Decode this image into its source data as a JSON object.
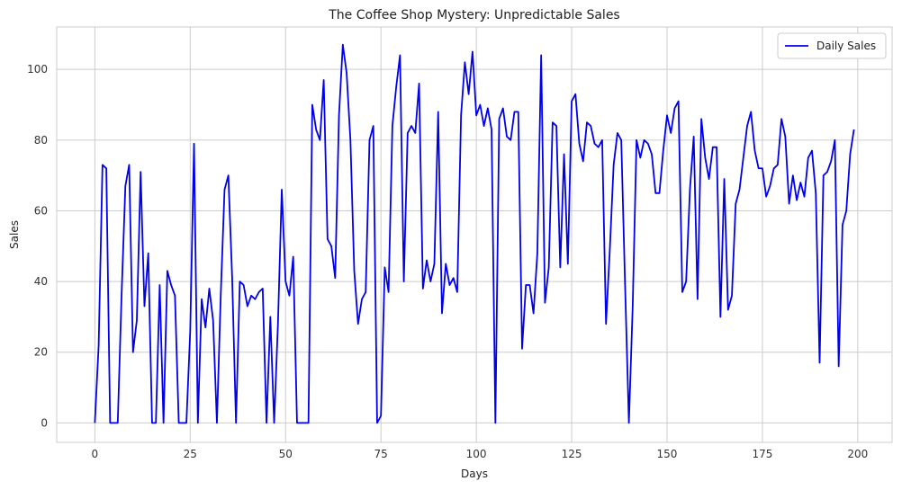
{
  "chart_data": {
    "type": "line",
    "title": "The Coffee Shop Mystery: Unpredictable Sales",
    "xlabel": "Days",
    "ylabel": "Sales",
    "xlim": [
      -10,
      209
    ],
    "ylim": [
      -5.5,
      112
    ],
    "xticks": [
      0,
      25,
      50,
      75,
      100,
      125,
      150,
      175,
      200
    ],
    "yticks": [
      0,
      20,
      40,
      60,
      80,
      100
    ],
    "grid": true,
    "legend_position": "top-right",
    "series": [
      {
        "name": "Daily Sales",
        "color": "#0000ee",
        "x": [
          0,
          1,
          2,
          3,
          4,
          5,
          6,
          7,
          8,
          9,
          10,
          11,
          12,
          13,
          14,
          15,
          16,
          17,
          18,
          19,
          20,
          21,
          22,
          23,
          24,
          25,
          26,
          27,
          28,
          29,
          30,
          31,
          32,
          33,
          34,
          35,
          36,
          37,
          38,
          39,
          40,
          41,
          42,
          43,
          44,
          45,
          46,
          47,
          48,
          49,
          50,
          51,
          52,
          53,
          54,
          55,
          56,
          57,
          58,
          59,
          60,
          61,
          62,
          63,
          64,
          65,
          66,
          67,
          68,
          69,
          70,
          71,
          72,
          73,
          74,
          75,
          76,
          77,
          78,
          79,
          80,
          81,
          82,
          83,
          84,
          85,
          86,
          87,
          88,
          89,
          90,
          91,
          92,
          93,
          94,
          95,
          96,
          97,
          98,
          99,
          100,
          101,
          102,
          103,
          104,
          105,
          106,
          107,
          108,
          109,
          110,
          111,
          112,
          113,
          114,
          115,
          116,
          117,
          118,
          119,
          120,
          121,
          122,
          123,
          124,
          125,
          126,
          127,
          128,
          129,
          130,
          131,
          132,
          133,
          134,
          135,
          136,
          137,
          138,
          139,
          140,
          141,
          142,
          143,
          144,
          145,
          146,
          147,
          148,
          149,
          150,
          151,
          152,
          153,
          154,
          155,
          156,
          157,
          158,
          159,
          160,
          161,
          162,
          163,
          164,
          165,
          166,
          167,
          168,
          169,
          170,
          171,
          172,
          173,
          174,
          175,
          176,
          177,
          178,
          179,
          180,
          181,
          182,
          183,
          184,
          185,
          186,
          187,
          188,
          189,
          190,
          191,
          192,
          193,
          194,
          195,
          196,
          197,
          198,
          199
        ],
        "values": [
          0,
          22,
          73,
          72,
          0,
          0,
          0,
          36,
          67,
          73,
          20,
          29,
          71,
          33,
          48,
          0,
          0,
          39,
          0,
          43,
          39,
          36,
          0,
          0,
          0,
          26,
          79,
          0,
          35,
          27,
          38,
          29,
          0,
          36,
          66,
          70,
          41,
          0,
          40,
          39,
          33,
          36,
          35,
          37,
          38,
          0,
          30,
          0,
          28,
          66,
          40,
          36,
          47,
          0,
          0,
          0,
          0,
          90,
          83,
          80,
          97,
          52,
          50,
          41,
          87,
          107,
          99,
          80,
          43,
          28,
          35,
          37,
          80,
          84,
          0,
          2,
          44,
          37,
          84,
          95,
          104,
          40,
          82,
          84,
          82,
          96,
          38,
          46,
          40,
          45,
          88,
          31,
          45,
          39,
          41,
          37,
          87,
          102,
          93,
          105,
          87,
          90,
          84,
          89,
          83,
          0,
          86,
          89,
          81,
          80,
          88,
          88,
          21,
          39,
          39,
          31,
          48,
          104,
          34,
          44,
          85,
          84,
          44,
          76,
          45,
          91,
          93,
          79,
          74,
          85,
          84,
          79,
          78,
          80,
          28,
          49,
          73,
          82,
          80,
          39,
          0,
          33,
          80,
          75,
          80,
          79,
          76,
          65,
          65,
          77,
          87,
          82,
          89,
          91,
          37,
          40,
          66,
          81,
          35,
          86,
          75,
          69,
          78,
          78,
          30,
          69,
          32,
          36,
          62,
          66,
          75,
          84,
          88,
          77,
          72,
          72,
          64,
          67,
          72,
          73,
          86,
          81,
          62,
          70,
          63,
          68,
          64,
          75,
          77,
          65,
          17,
          70,
          71,
          74,
          80,
          16,
          56,
          60,
          76,
          83
        ]
      }
    ]
  }
}
